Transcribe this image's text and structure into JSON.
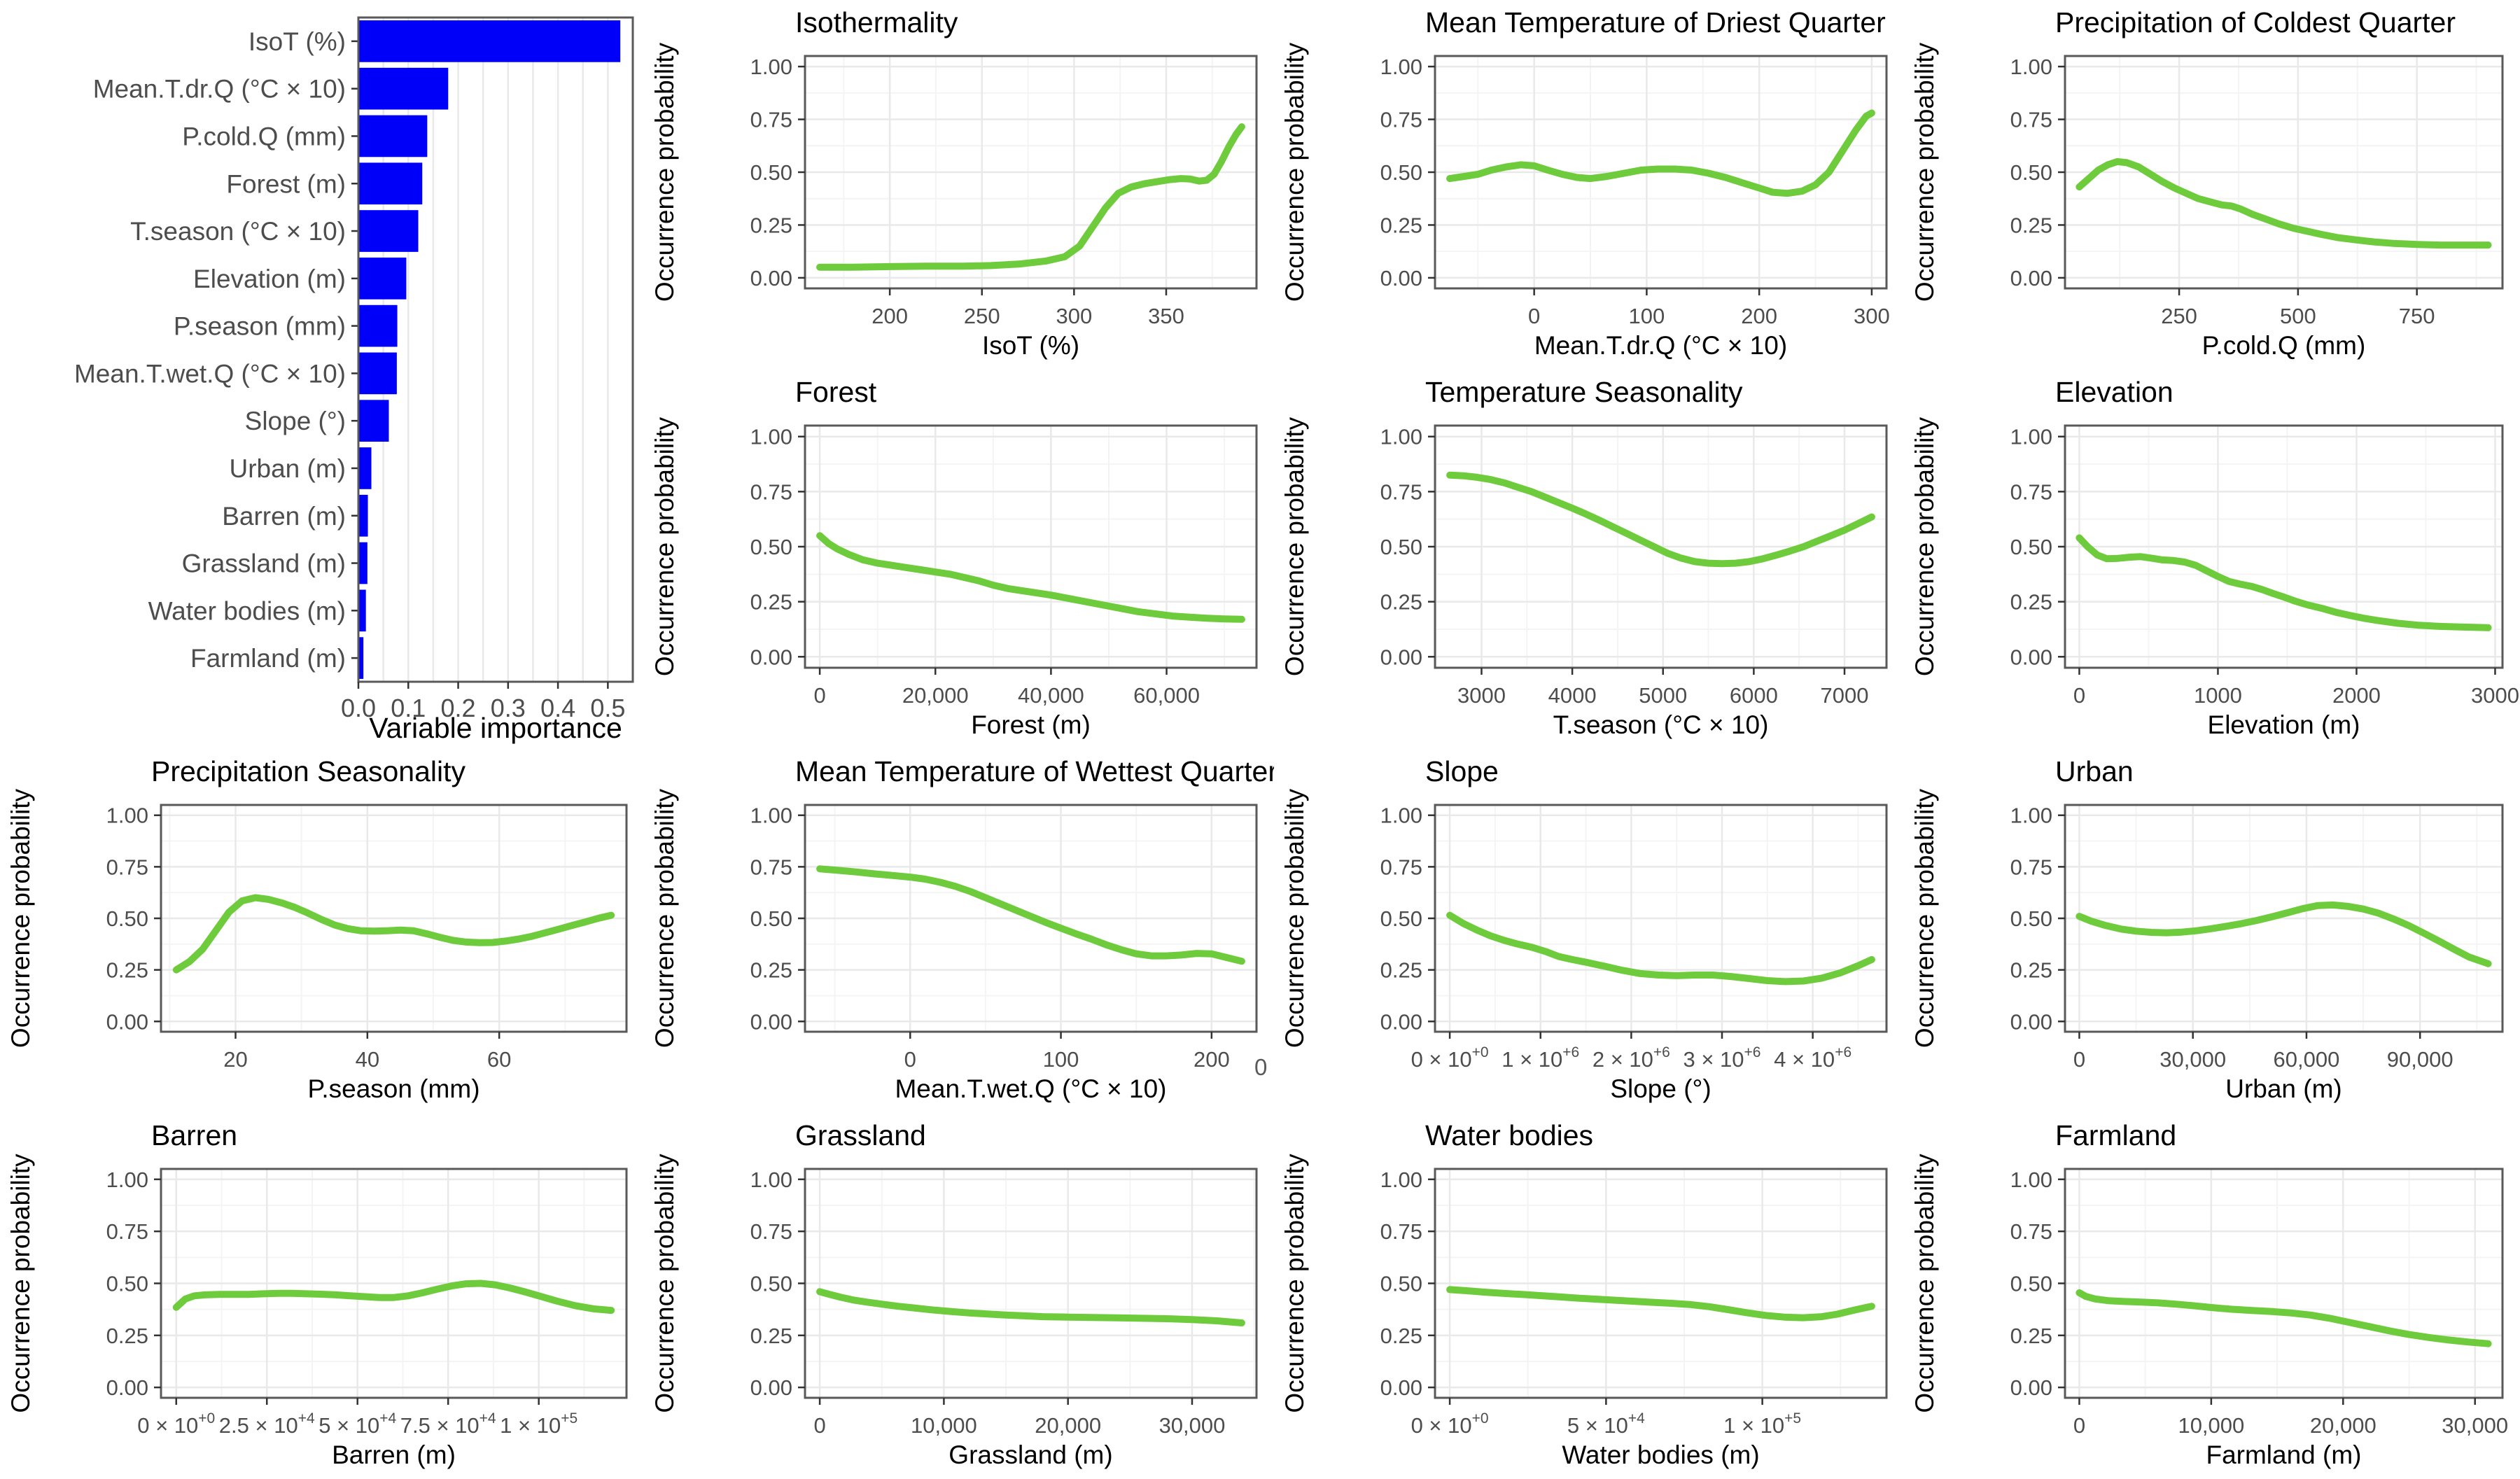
{
  "figure": {
    "background": "#ffffff",
    "stray_label": "0",
    "ylabel": "Occurrence probability",
    "ytick_values": [
      0,
      0.25,
      0.5,
      0.75,
      1.0
    ],
    "ytick_labels": [
      "0.00",
      "0.25",
      "0.50",
      "0.75",
      "1.00"
    ],
    "curve_color": "#6ecb3c",
    "bar_color": "#0000fa",
    "panel_border_color": "#595959",
    "grid_major_color": "#e9e9e9",
    "grid_minor_color": "#f4f4f4",
    "tick_mark_color": "#333333",
    "tick_text_color": "#4d4d4d",
    "title_color": "#000000"
  },
  "chart_data": [
    {
      "id": "variable-importance",
      "type": "bar",
      "title": "",
      "xlabel": "Variable importance",
      "xlim": [
        0,
        0.55
      ],
      "xtick_values": [
        0,
        0.1,
        0.2,
        0.3,
        0.4,
        0.5
      ],
      "xtick_labels": [
        "0.0",
        "0.1",
        "0.2",
        "0.3",
        "0.4",
        "0.5"
      ],
      "categories": [
        "IsoT (%)",
        "Mean.T.dr.Q (°C × 10)",
        "P.cold.Q (mm)",
        "Forest (m)",
        "T.season (°C × 10)",
        "Elevation (m)",
        "P.season (mm)",
        "Mean.T.wet.Q (°C × 10)",
        "Slope (°)",
        "Urban (m)",
        "Barren (m)",
        "Grassland (m)",
        "Water bodies (m)",
        "Farmland (m)"
      ],
      "values": [
        0.525,
        0.18,
        0.138,
        0.128,
        0.12,
        0.096,
        0.078,
        0.077,
        0.061,
        0.026,
        0.019,
        0.018,
        0.015,
        0.01
      ]
    },
    {
      "id": "isothermality",
      "type": "line",
      "title": "Isothermality",
      "xlabel": "IsoT (%)",
      "xlim": [
        162,
        391
      ],
      "xtick_values": [
        200,
        250,
        300,
        350
      ],
      "xtick_labels": [
        "200",
        "250",
        "300",
        "350"
      ],
      "x": [
        162,
        180,
        200,
        220,
        240,
        255,
        270,
        285,
        295,
        303,
        310,
        317,
        324,
        331,
        338,
        345,
        352,
        358,
        363,
        368,
        372,
        376,
        380,
        384,
        388,
        391
      ],
      "y": [
        0.05,
        0.05,
        0.053,
        0.055,
        0.055,
        0.058,
        0.065,
        0.08,
        0.1,
        0.15,
        0.24,
        0.33,
        0.4,
        0.43,
        0.445,
        0.455,
        0.465,
        0.47,
        0.468,
        0.458,
        0.462,
        0.49,
        0.55,
        0.62,
        0.68,
        0.715
      ]
    },
    {
      "id": "mean-t-driest-quarter",
      "type": "line",
      "title": "Mean Temperature of Driest Quarter",
      "xlabel": "Mean.T.dr.Q (°C × 10)",
      "xlim": [
        -75,
        300
      ],
      "xtick_values": [
        0,
        100,
        200,
        300
      ],
      "xtick_labels": [
        "0",
        "100",
        "200",
        "300"
      ],
      "x": [
        -75,
        -62,
        -50,
        -38,
        -25,
        -12,
        0,
        12,
        25,
        38,
        50,
        65,
        80,
        95,
        110,
        125,
        140,
        155,
        170,
        185,
        200,
        212,
        225,
        238,
        250,
        262,
        274,
        286,
        295,
        300
      ],
      "y": [
        0.47,
        0.48,
        0.49,
        0.51,
        0.525,
        0.535,
        0.53,
        0.51,
        0.49,
        0.475,
        0.47,
        0.48,
        0.495,
        0.51,
        0.515,
        0.515,
        0.51,
        0.495,
        0.475,
        0.45,
        0.425,
        0.405,
        0.4,
        0.41,
        0.44,
        0.5,
        0.6,
        0.7,
        0.765,
        0.78
      ]
    },
    {
      "id": "precip-coldest-quarter",
      "type": "line",
      "title": "Precipitation of Coldest Quarter",
      "xlabel": "P.cold.Q (mm)",
      "xlim": [
        40,
        900
      ],
      "xtick_values": [
        250,
        500,
        750
      ],
      "xtick_labels": [
        "250",
        "500",
        "750"
      ],
      "x": [
        40,
        60,
        80,
        100,
        120,
        140,
        165,
        190,
        215,
        240,
        265,
        290,
        315,
        340,
        360,
        380,
        405,
        430,
        460,
        490,
        520,
        550,
        585,
        620,
        660,
        700,
        750,
        800,
        850,
        900
      ],
      "y": [
        0.43,
        0.47,
        0.51,
        0.535,
        0.55,
        0.545,
        0.525,
        0.49,
        0.455,
        0.425,
        0.4,
        0.375,
        0.36,
        0.345,
        0.34,
        0.325,
        0.3,
        0.28,
        0.255,
        0.235,
        0.22,
        0.205,
        0.19,
        0.18,
        0.17,
        0.163,
        0.158,
        0.155,
        0.155,
        0.155
      ]
    },
    {
      "id": "forest",
      "type": "line",
      "title": "Forest",
      "xlabel": "Forest (m)",
      "xlim": [
        0,
        73000
      ],
      "xtick_values": [
        0,
        20000,
        40000,
        60000
      ],
      "xtick_labels": [
        "0",
        "20,000",
        "40,000",
        "60,000"
      ],
      "x": [
        0,
        1500,
        3000,
        5000,
        7500,
        10000,
        12500,
        15000,
        17500,
        20000,
        22500,
        25000,
        27500,
        30000,
        32500,
        35000,
        37500,
        40000,
        43000,
        46000,
        49000,
        52000,
        55000,
        58000,
        61000,
        64000,
        67000,
        70000,
        73000
      ],
      "y": [
        0.55,
        0.515,
        0.49,
        0.465,
        0.44,
        0.425,
        0.415,
        0.405,
        0.395,
        0.385,
        0.375,
        0.36,
        0.345,
        0.325,
        0.31,
        0.3,
        0.29,
        0.28,
        0.265,
        0.25,
        0.235,
        0.22,
        0.205,
        0.195,
        0.185,
        0.18,
        0.175,
        0.172,
        0.17
      ]
    },
    {
      "id": "temperature-seasonality",
      "type": "line",
      "title": "Temperature Seasonality",
      "xlabel": "T.season (°C × 10)",
      "xlim": [
        2650,
        7300
      ],
      "xtick_values": [
        3000,
        4000,
        5000,
        6000,
        7000
      ],
      "xtick_labels": [
        "3000",
        "4000",
        "5000",
        "6000",
        "7000"
      ],
      "x": [
        2650,
        2800,
        2950,
        3100,
        3250,
        3400,
        3550,
        3700,
        3850,
        4000,
        4150,
        4300,
        4450,
        4600,
        4750,
        4900,
        5050,
        5200,
        5350,
        5500,
        5650,
        5800,
        5950,
        6100,
        6250,
        6400,
        6550,
        6700,
        6850,
        7000,
        7150,
        7300
      ],
      "y": [
        0.825,
        0.822,
        0.815,
        0.805,
        0.79,
        0.77,
        0.75,
        0.725,
        0.7,
        0.675,
        0.648,
        0.62,
        0.59,
        0.56,
        0.53,
        0.5,
        0.47,
        0.448,
        0.432,
        0.425,
        0.423,
        0.425,
        0.432,
        0.445,
        0.462,
        0.48,
        0.5,
        0.525,
        0.55,
        0.575,
        0.605,
        0.635
      ]
    },
    {
      "id": "elevation",
      "type": "line",
      "title": "Elevation",
      "xlabel": "Elevation (m)",
      "xlim": [
        0,
        2950
      ],
      "xtick_values": [
        0,
        1000,
        2000,
        3000
      ],
      "xtick_labels": [
        "0",
        "1000",
        "2000",
        "3000"
      ],
      "x": [
        0,
        60,
        130,
        200,
        280,
        360,
        440,
        520,
        600,
        680,
        760,
        840,
        920,
        1000,
        1080,
        1160,
        1240,
        1320,
        1400,
        1480,
        1560,
        1650,
        1750,
        1850,
        1950,
        2050,
        2150,
        2300,
        2450,
        2600,
        2750,
        2950
      ],
      "y": [
        0.54,
        0.5,
        0.462,
        0.445,
        0.447,
        0.452,
        0.455,
        0.448,
        0.44,
        0.437,
        0.43,
        0.415,
        0.39,
        0.365,
        0.342,
        0.33,
        0.32,
        0.305,
        0.287,
        0.27,
        0.252,
        0.235,
        0.22,
        0.202,
        0.188,
        0.175,
        0.165,
        0.152,
        0.143,
        0.138,
        0.135,
        0.132
      ]
    },
    {
      "id": "precipitation-seasonality",
      "type": "line",
      "title": "Precipitation Seasonality",
      "xlabel": "P.season (mm)",
      "xlim": [
        11,
        77
      ],
      "xtick_values": [
        20,
        40,
        60
      ],
      "xtick_labels": [
        "20",
        "40",
        "60"
      ],
      "x": [
        11,
        13,
        15,
        17,
        19,
        21,
        23,
        25,
        27,
        29,
        31,
        33,
        35,
        37,
        39,
        41,
        43,
        45,
        47,
        49,
        51,
        53,
        55,
        57,
        59,
        61,
        63,
        65,
        67,
        69,
        71,
        73,
        75,
        77
      ],
      "y": [
        0.25,
        0.29,
        0.35,
        0.44,
        0.53,
        0.585,
        0.6,
        0.592,
        0.575,
        0.553,
        0.525,
        0.495,
        0.468,
        0.45,
        0.44,
        0.438,
        0.44,
        0.443,
        0.44,
        0.425,
        0.408,
        0.393,
        0.385,
        0.382,
        0.383,
        0.39,
        0.4,
        0.413,
        0.43,
        0.447,
        0.465,
        0.482,
        0.5,
        0.515
      ]
    },
    {
      "id": "mean-t-wettest-quarter",
      "type": "line",
      "title": "Mean Temperature of Wettest Quarter",
      "xlabel": "Mean.T.wet.Q (°C × 10)",
      "xlim": [
        -60,
        220
      ],
      "xtick_values": [
        0,
        100,
        200
      ],
      "xtick_labels": [
        "0",
        "100",
        "200"
      ],
      "x": [
        -60,
        -48,
        -36,
        -24,
        -12,
        0,
        10,
        20,
        30,
        40,
        50,
        60,
        70,
        80,
        90,
        100,
        110,
        120,
        130,
        140,
        150,
        160,
        170,
        180,
        190,
        200,
        210,
        220
      ],
      "y": [
        0.74,
        0.733,
        0.725,
        0.716,
        0.708,
        0.7,
        0.69,
        0.675,
        0.655,
        0.63,
        0.6,
        0.57,
        0.54,
        0.51,
        0.48,
        0.452,
        0.425,
        0.4,
        0.372,
        0.348,
        0.328,
        0.318,
        0.318,
        0.322,
        0.33,
        0.328,
        0.31,
        0.292
      ]
    },
    {
      "id": "slope",
      "type": "line",
      "title": "Slope",
      "xlabel": "Slope (°)",
      "xlim": [
        0,
        4650000
      ],
      "xtick_values": [
        0,
        1000000,
        2000000,
        3000000,
        4000000
      ],
      "xtick_labels": [
        "0 × 10^+0",
        "1 × 10^+6",
        "2 × 10^+6",
        "3 × 10^+6",
        "4 × 10^+6"
      ],
      "x": [
        0,
        150000,
        300000,
        450000,
        600000,
        750000,
        900000,
        1050000,
        1200000,
        1350000,
        1500000,
        1700000,
        1900000,
        2100000,
        2300000,
        2500000,
        2700000,
        2900000,
        3100000,
        3300000,
        3500000,
        3700000,
        3900000,
        4100000,
        4300000,
        4500000,
        4650000
      ],
      "y": [
        0.515,
        0.475,
        0.443,
        0.415,
        0.393,
        0.375,
        0.36,
        0.34,
        0.315,
        0.3,
        0.287,
        0.268,
        0.248,
        0.232,
        0.225,
        0.222,
        0.225,
        0.225,
        0.218,
        0.208,
        0.198,
        0.193,
        0.196,
        0.21,
        0.235,
        0.27,
        0.3
      ]
    },
    {
      "id": "urban",
      "type": "line",
      "title": "Urban",
      "xlabel": "Urban (m)",
      "xlim": [
        0,
        108000
      ],
      "xtick_values": [
        0,
        30000,
        60000,
        90000
      ],
      "xtick_labels": [
        "0",
        "30,000",
        "60,000",
        "90,000"
      ],
      "x": [
        0,
        3000,
        7000,
        11000,
        15000,
        19000,
        23000,
        27000,
        31000,
        35000,
        39000,
        43000,
        47000,
        51000,
        55000,
        59000,
        63000,
        67000,
        71000,
        75000,
        79000,
        83000,
        87000,
        91000,
        95000,
        99000,
        103000,
        108000
      ],
      "y": [
        0.51,
        0.487,
        0.465,
        0.448,
        0.438,
        0.432,
        0.43,
        0.433,
        0.44,
        0.45,
        0.462,
        0.475,
        0.49,
        0.508,
        0.527,
        0.547,
        0.562,
        0.565,
        0.558,
        0.545,
        0.525,
        0.497,
        0.465,
        0.428,
        0.39,
        0.35,
        0.312,
        0.28
      ]
    },
    {
      "id": "barren",
      "type": "line",
      "title": "Barren",
      "xlabel": "Barren (m)",
      "xlim": [
        0,
        120000
      ],
      "xtick_values": [
        0,
        25000,
        50000,
        75000,
        100000
      ],
      "xtick_labels": [
        "0 × 10^+0",
        "2.5 × 10^+4",
        "5 × 10^+4",
        "7.5 × 10^+4",
        "1 × 10^+5"
      ],
      "x": [
        0,
        2500,
        5000,
        8000,
        12000,
        16000,
        20000,
        24000,
        28000,
        32000,
        36000,
        40000,
        44000,
        48000,
        52000,
        56000,
        60000,
        64000,
        68000,
        72000,
        76000,
        80000,
        84000,
        88000,
        92000,
        96000,
        100000,
        105000,
        110000,
        115000,
        120000
      ],
      "y": [
        0.385,
        0.425,
        0.44,
        0.445,
        0.447,
        0.447,
        0.447,
        0.45,
        0.452,
        0.452,
        0.45,
        0.448,
        0.445,
        0.44,
        0.436,
        0.432,
        0.432,
        0.44,
        0.455,
        0.472,
        0.488,
        0.498,
        0.5,
        0.493,
        0.478,
        0.46,
        0.44,
        0.415,
        0.393,
        0.378,
        0.37
      ]
    },
    {
      "id": "grassland",
      "type": "line",
      "title": "Grassland",
      "xlabel": "Grassland (m)",
      "xlim": [
        0,
        34000
      ],
      "xtick_values": [
        0,
        10000,
        20000,
        30000
      ],
      "xtick_labels": [
        "0",
        "10,000",
        "20,000",
        "30,000"
      ],
      "x": [
        0,
        800,
        1700,
        2700,
        3800,
        5000,
        6300,
        7600,
        9000,
        10500,
        12000,
        13500,
        15000,
        16500,
        18000,
        20000,
        22000,
        24000,
        26000,
        28000,
        30000,
        32000,
        34000
      ],
      "y": [
        0.46,
        0.447,
        0.433,
        0.42,
        0.41,
        0.4,
        0.39,
        0.382,
        0.373,
        0.365,
        0.358,
        0.353,
        0.348,
        0.344,
        0.34,
        0.338,
        0.336,
        0.334,
        0.332,
        0.33,
        0.326,
        0.32,
        0.31
      ]
    },
    {
      "id": "water-bodies",
      "type": "line",
      "title": "Water bodies",
      "xlabel": "Water bodies (m)",
      "xlim": [
        0,
        135000
      ],
      "xtick_values": [
        0,
        50000,
        100000
      ],
      "xtick_labels": [
        "0 × 10^+0",
        "5 × 10^+4",
        "1 × 10^+5"
      ],
      "x": [
        0,
        5000,
        11000,
        17000,
        23000,
        29000,
        35000,
        41000,
        47000,
        53000,
        59000,
        65000,
        71000,
        77000,
        83000,
        89000,
        95000,
        101000,
        107000,
        113000,
        119000,
        124000,
        129000,
        135000
      ],
      "y": [
        0.47,
        0.465,
        0.458,
        0.452,
        0.447,
        0.441,
        0.435,
        0.429,
        0.424,
        0.419,
        0.414,
        0.409,
        0.404,
        0.398,
        0.388,
        0.374,
        0.359,
        0.346,
        0.338,
        0.335,
        0.34,
        0.352,
        0.37,
        0.39
      ]
    },
    {
      "id": "farmland",
      "type": "line",
      "title": "Farmland",
      "xlabel": "Farmland (m)",
      "xlim": [
        0,
        31000
      ],
      "xtick_values": [
        0,
        10000,
        20000,
        30000
      ],
      "xtick_labels": [
        "0",
        "10,000",
        "20,000",
        "30,000"
      ],
      "x": [
        0,
        500,
        1200,
        2200,
        3400,
        4700,
        6000,
        7300,
        8600,
        10000,
        11500,
        13000,
        14500,
        16000,
        17500,
        19000,
        20500,
        22000,
        23500,
        25000,
        26500,
        28000,
        29500,
        31000
      ],
      "y": [
        0.455,
        0.437,
        0.425,
        0.417,
        0.413,
        0.41,
        0.406,
        0.4,
        0.393,
        0.384,
        0.376,
        0.37,
        0.365,
        0.358,
        0.348,
        0.332,
        0.312,
        0.292,
        0.272,
        0.254,
        0.24,
        0.228,
        0.218,
        0.21
      ]
    }
  ]
}
